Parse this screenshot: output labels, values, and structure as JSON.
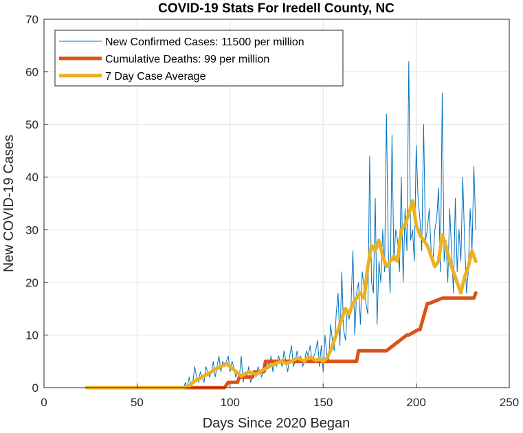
{
  "chart_data": {
    "type": "line",
    "title": "COVID-19 Stats For Iredell County, NC",
    "xlabel": "Days Since 2020 Began",
    "ylabel": "New COVID-19 Cases",
    "xlim": [
      0,
      250
    ],
    "ylim": [
      0,
      70
    ],
    "xticks": [
      "0",
      "50",
      "100",
      "150",
      "200",
      "250"
    ],
    "yticks": [
      "0",
      "10",
      "20",
      "30",
      "40",
      "50",
      "60",
      "70"
    ],
    "grid": true,
    "legend_position": "top-left",
    "series": [
      {
        "name": "New Confirmed Cases: 11500 per million",
        "color": "#0072bd",
        "x": [
          23,
          40,
          60,
          75,
          76,
          77,
          78,
          79,
          80,
          81,
          82,
          83,
          84,
          85,
          86,
          87,
          88,
          89,
          90,
          91,
          92,
          93,
          94,
          95,
          96,
          97,
          98,
          99,
          100,
          101,
          102,
          103,
          104,
          105,
          106,
          107,
          108,
          109,
          110,
          111,
          112,
          113,
          114,
          115,
          116,
          117,
          118,
          119,
          120,
          121,
          122,
          123,
          124,
          125,
          126,
          127,
          128,
          129,
          130,
          131,
          132,
          133,
          134,
          135,
          136,
          137,
          138,
          139,
          140,
          141,
          142,
          143,
          144,
          145,
          146,
          147,
          148,
          149,
          150,
          151,
          152,
          153,
          154,
          155,
          156,
          157,
          158,
          159,
          160,
          161,
          162,
          163,
          164,
          165,
          166,
          167,
          168,
          169,
          170,
          171,
          172,
          173,
          174,
          175,
          176,
          177,
          178,
          179,
          180,
          181,
          182,
          183,
          184,
          185,
          186,
          187,
          188,
          189,
          190,
          191,
          192,
          193,
          194,
          195,
          196,
          197,
          198,
          199,
          200,
          201,
          202,
          203,
          204,
          205,
          206,
          207,
          208,
          209,
          210,
          211,
          212,
          213,
          214,
          215,
          216,
          217,
          218,
          219,
          220,
          221,
          222,
          223,
          224,
          225,
          226,
          227,
          228,
          229,
          230,
          231,
          232
        ],
        "y": [
          0,
          0,
          0,
          0,
          1,
          0,
          2,
          0,
          1,
          4,
          2,
          1,
          3,
          2,
          1,
          4,
          3,
          2,
          3,
          5,
          2,
          4,
          6,
          3,
          5,
          4,
          5,
          6,
          3,
          5,
          4,
          2,
          3,
          2,
          6,
          1,
          3,
          2,
          4,
          1,
          2,
          3,
          2,
          4,
          3,
          2,
          4,
          3,
          5,
          4,
          6,
          3,
          5,
          4,
          6,
          5,
          4,
          7,
          5,
          3,
          6,
          8,
          4,
          5,
          7,
          5,
          6,
          4,
          5,
          7,
          6,
          8,
          5,
          6,
          7,
          9,
          4,
          8,
          3,
          10,
          6,
          5,
          12,
          9,
          7,
          14,
          18,
          8,
          22,
          11,
          9,
          15,
          13,
          16,
          26,
          10,
          18,
          20,
          12,
          22,
          19,
          16,
          14,
          44,
          20,
          18,
          36,
          12,
          24,
          20,
          30,
          22,
          52,
          26,
          18,
          48,
          24,
          30,
          28,
          22,
          40,
          20,
          34,
          26,
          62,
          28,
          30,
          24,
          46,
          36,
          32,
          26,
          50,
          28,
          30,
          34,
          26,
          24,
          30,
          32,
          38,
          22,
          56,
          24,
          28,
          20,
          34,
          26,
          18,
          36,
          22,
          30,
          24,
          40,
          28,
          18,
          22,
          34,
          26,
          42,
          30
        ],
        "notes": "values estimated from the chart"
      },
      {
        "name": "Cumulative Deaths: 99 per million",
        "color": "#d95319",
        "x": [
          23,
          97,
          99,
          100,
          104,
          105,
          112,
          113,
          118,
          119,
          168,
          169,
          183,
          184,
          195,
          196,
          201,
          202,
          206,
          207,
          214,
          215,
          231,
          232
        ],
        "y": [
          0,
          0,
          1,
          1,
          1,
          2,
          2,
          3,
          3,
          5,
          5,
          7,
          7,
          7,
          10,
          10,
          11,
          11,
          16,
          16,
          17,
          17,
          17,
          18
        ]
      },
      {
        "name": "7 Day Case Average",
        "color": "#edb120",
        "x": [
          23,
          40,
          60,
          75,
          78,
          80,
          82,
          84,
          86,
          88,
          90,
          92,
          94,
          96,
          98,
          100,
          102,
          104,
          106,
          108,
          110,
          112,
          114,
          116,
          118,
          120,
          122,
          124,
          126,
          128,
          130,
          132,
          134,
          136,
          138,
          140,
          142,
          144,
          146,
          148,
          150,
          152,
          154,
          156,
          158,
          160,
          162,
          164,
          166,
          168,
          170,
          172,
          174,
          176,
          178,
          180,
          182,
          184,
          186,
          188,
          190,
          192,
          194,
          196,
          198,
          200,
          202,
          204,
          206,
          208,
          210,
          212,
          214,
          216,
          218,
          220,
          222,
          224,
          226,
          228,
          230,
          232
        ],
        "y": [
          0,
          0,
          0,
          0,
          0.3,
          1,
          1.5,
          1.8,
          2.2,
          2.6,
          3,
          3.5,
          3.8,
          4.2,
          4.6,
          4,
          3.4,
          2.8,
          2.2,
          2.6,
          3,
          2.8,
          2.5,
          3,
          3.4,
          3.8,
          4.2,
          4.5,
          4.8,
          5,
          4.6,
          4.8,
          5.2,
          5.6,
          5.4,
          5,
          5.8,
          5.6,
          5.2,
          5.4,
          5,
          5.6,
          7,
          9,
          11,
          13,
          15,
          14,
          16,
          17,
          18,
          17,
          23,
          27,
          26,
          28,
          25,
          23,
          24,
          25,
          24,
          30,
          31,
          33,
          35.5,
          31,
          29,
          28,
          27,
          25,
          23,
          24,
          29,
          27,
          24,
          22,
          20,
          18,
          21,
          23,
          26,
          24
        ]
      }
    ]
  }
}
